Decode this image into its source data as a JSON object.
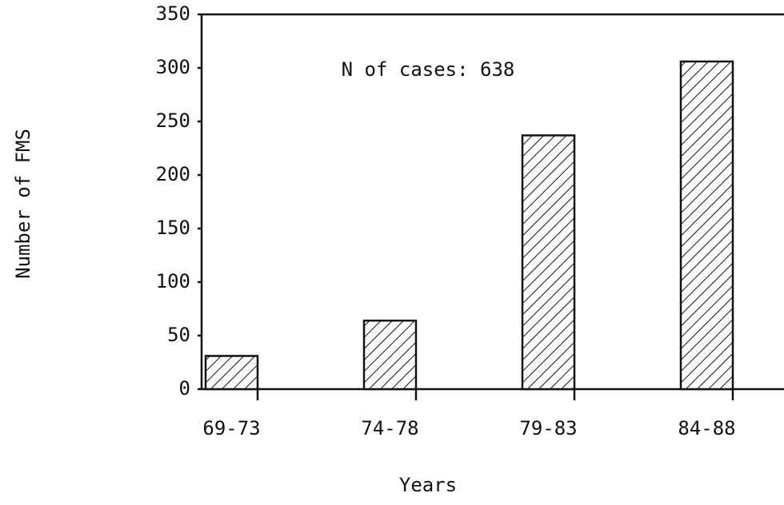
{
  "chart_data": {
    "type": "bar",
    "annotation": "N of cases: 638",
    "x_label": "Years",
    "y_label": "Number of FMS",
    "categories": [
      "69-73",
      "74-78",
      "79-83",
      "84-88"
    ],
    "values": [
      31,
      64,
      237,
      306
    ],
    "color": "#111111",
    "ylim": [
      0,
      350
    ],
    "yticks": [
      0,
      50,
      100,
      150,
      200,
      250,
      300,
      350
    ],
    "hatch": true
  }
}
